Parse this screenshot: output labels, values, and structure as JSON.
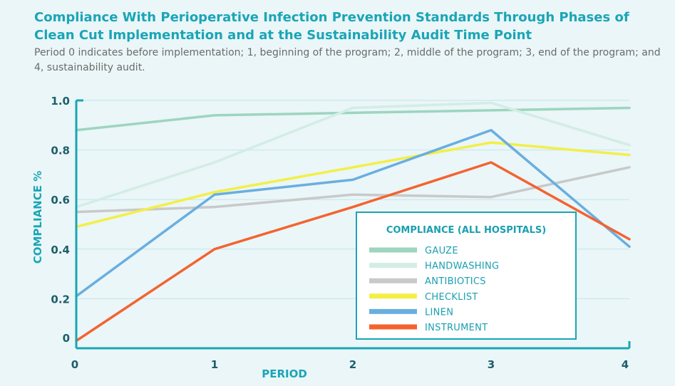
{
  "title": "Compliance With Perioperative Infection Prevention Standards Through Phases of Clean Cut Implementation and at the Sustainability Audit Time Point",
  "subtitle": "Period 0 indicates before implementation; 1, beginning of the program; 2, middle of the program; 3, end of the program; and 4, sustainability audit.",
  "chart_data": {
    "type": "line",
    "xlabel": "PERIOD",
    "ylabel": "COMPLIANCE %",
    "x": [
      0,
      1,
      2,
      3,
      4
    ],
    "xticks": [
      "0",
      "1",
      "2",
      "3",
      "4"
    ],
    "ylim": [
      0,
      1.0
    ],
    "yticks": [
      0,
      0.2,
      0.4,
      0.6,
      0.8,
      1.0
    ],
    "ytick_labels": [
      "0",
      "0.2",
      "0.4",
      "0.6",
      "0.8",
      "1.0"
    ],
    "grid": true,
    "legend_title": "COMPLIANCE (ALL HOSPITALS)",
    "legend_position": "bottom-right",
    "series": [
      {
        "name": "GAUZE",
        "color": "#9dd5bf",
        "values": [
          0.88,
          0.94,
          0.95,
          0.96,
          0.97
        ]
      },
      {
        "name": "HANDWASHING",
        "color": "#d3ede5",
        "values": [
          0.57,
          0.75,
          0.97,
          0.99,
          0.82
        ]
      },
      {
        "name": "ANTIBIOTICS",
        "color": "#c9c9c9",
        "values": [
          0.55,
          0.57,
          0.62,
          0.61,
          0.73
        ]
      },
      {
        "name": "CHECKLIST",
        "color": "#f3ef45",
        "values": [
          0.49,
          0.63,
          0.73,
          0.83,
          0.78
        ]
      },
      {
        "name": "LINEN",
        "color": "#6aaee0",
        "values": [
          0.21,
          0.62,
          0.68,
          0.88,
          0.41
        ]
      },
      {
        "name": "INSTRUMENT",
        "color": "#f4632f",
        "values": [
          0.03,
          0.4,
          0.57,
          0.75,
          0.44
        ]
      }
    ]
  }
}
